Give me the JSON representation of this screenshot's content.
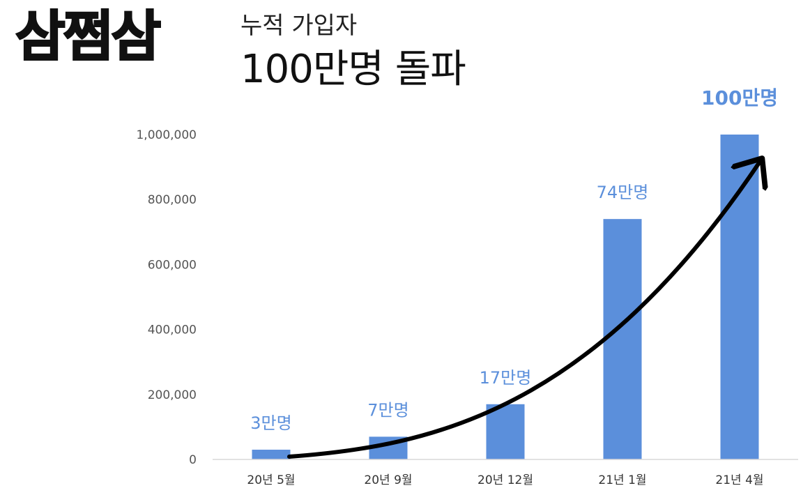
{
  "header": {
    "brand": "삼쩜삼",
    "subtitle": "누적 가입자",
    "headline": "100만명 돌파"
  },
  "chart_data": {
    "type": "bar",
    "title": "",
    "xlabel": "",
    "ylabel": "",
    "categories": [
      "20년 5월",
      "20년 9월",
      "20년 12월",
      "21년 1월",
      "21년 4월"
    ],
    "values": [
      30000,
      70000,
      170000,
      740000,
      1000000
    ],
    "data_labels": [
      "3만명",
      "7만명",
      "17만명",
      "74만명",
      "100만명"
    ],
    "ylim": [
      0,
      1000000
    ],
    "yticks": [
      0,
      200000,
      400000,
      600000,
      800000,
      1000000
    ],
    "ytick_labels": [
      "0",
      "200,000",
      "400,000",
      "600,000",
      "800,000",
      "1,000,000"
    ],
    "grid": false,
    "legend": "none",
    "bar_color": "#5b8fdb",
    "label_color": "#5b8fdb",
    "annotation": "curved growth arrow"
  }
}
